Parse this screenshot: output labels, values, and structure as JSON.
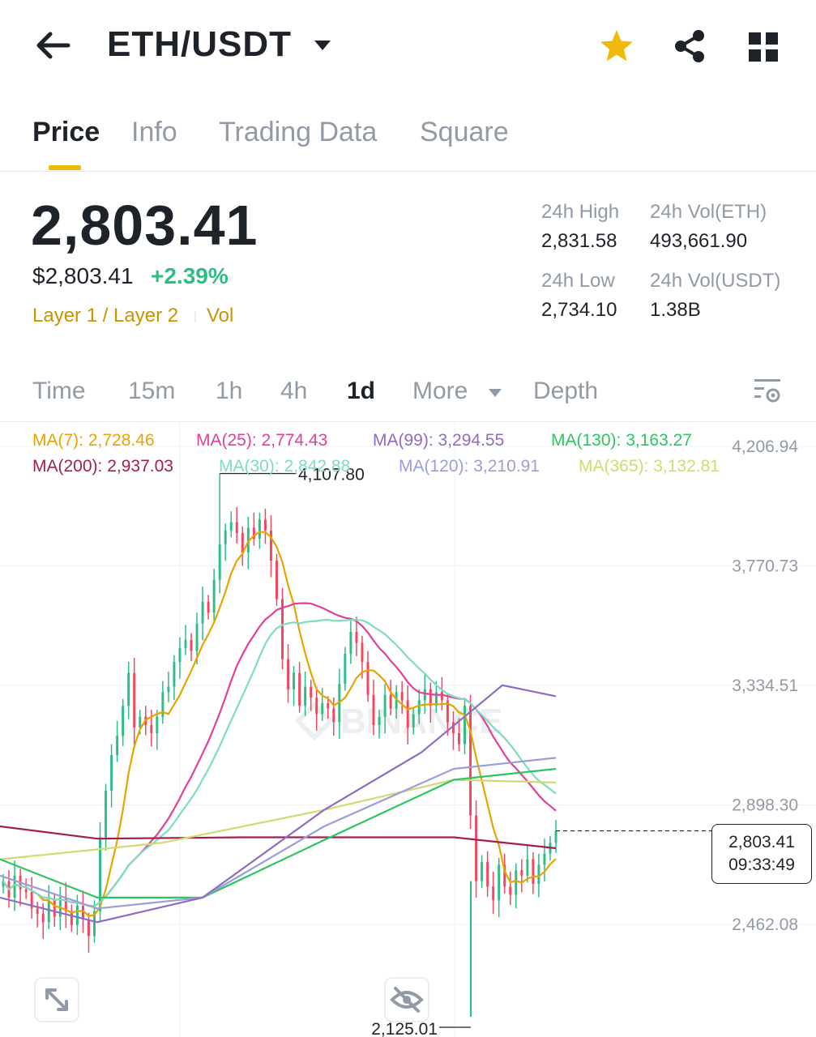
{
  "header": {
    "pair": "ETH/USDT",
    "icons": {
      "back": "arrow-left-icon",
      "caret": "caret-down-icon",
      "favorite": "star-icon",
      "share": "share-icon",
      "grid": "grid-icon"
    },
    "favorite_color": "#F0B90B"
  },
  "tabs": [
    {
      "label": "Price",
      "active": true
    },
    {
      "label": "Info",
      "active": false
    },
    {
      "label": "Trading Data",
      "active": false
    },
    {
      "label": "Square",
      "active": false
    }
  ],
  "price": {
    "last": "2,803.41",
    "usd": "$2,803.41",
    "change": "+2.39%",
    "change_color": "#2EBD85",
    "tag_category": "Layer 1 / Layer 2",
    "tag_vol": "Vol"
  },
  "stats": {
    "high_label": "24h High",
    "high_value": "2,831.58",
    "vol_eth_label": "24h Vol(ETH)",
    "vol_eth_value": "493,661.90",
    "low_label": "24h Low",
    "low_value": "2,734.10",
    "vol_usdt_label": "24h Vol(USDT)",
    "vol_usdt_value": "1.38B"
  },
  "intervals": [
    {
      "label": "Time",
      "active": false
    },
    {
      "label": "15m",
      "active": false
    },
    {
      "label": "1h",
      "active": false
    },
    {
      "label": "4h",
      "active": false
    },
    {
      "label": "1d",
      "active": true
    },
    {
      "label": "More",
      "active": false
    },
    {
      "label": "Depth",
      "active": false
    }
  ],
  "ma_legend": [
    {
      "label": "MA(7): 2,728.46",
      "color": "#E7A400"
    },
    {
      "label": "MA(25): 2,774.43",
      "color": "#E0409A"
    },
    {
      "label": "MA(99): 3,294.55",
      "color": "#8E6CC0"
    },
    {
      "label": "MA(130): 3,163.27",
      "color": "#2DC560"
    },
    {
      "label": "MA(200): 2,937.03",
      "color": "#A1204F"
    },
    {
      "label": "MA(30): 2,842.88",
      "color": "#7FDCC2"
    },
    {
      "label": "MA(120): 3,210.91",
      "color": "#9AA0D6"
    },
    {
      "label": "MA(365): 3,132.81",
      "color": "#D0DC72"
    }
  ],
  "chart_data": {
    "type": "candlestick",
    "interval": "1d",
    "y_axis_ticks": [
      "4,206.94",
      "3,770.73",
      "3,334.51",
      "2,898.30",
      "2,462.08"
    ],
    "y_axis_values": [
      4206.94,
      3770.73,
      3334.51,
      2898.3,
      2462.08
    ],
    "high_marker": {
      "label": "4,107.80",
      "value": 4107.8
    },
    "low_marker": {
      "label": "2,125.01",
      "value": 2125.01
    },
    "last_price": {
      "value": "2,803.41",
      "countdown": "09:33:49"
    },
    "up_color": "#2EBD85",
    "down_color": "#F6465D",
    "watermark": "BINANCE",
    "closes": [
      2620,
      2560,
      2640,
      2590,
      2580,
      2520,
      2500,
      2470,
      2550,
      2490,
      2560,
      2510,
      2460,
      2530,
      2480,
      2420,
      2510,
      2780,
      2950,
      3080,
      3150,
      3260,
      3380,
      3180,
      3220,
      3190,
      3160,
      3220,
      3310,
      3330,
      3420,
      3470,
      3500,
      3460,
      3560,
      3640,
      3600,
      3720,
      3850,
      3900,
      3930,
      3890,
      3820,
      3910,
      3870,
      3940,
      3900,
      3790,
      3650,
      3430,
      3320,
      3380,
      3260,
      3330,
      3290,
      3230,
      3270,
      3250,
      3200,
      3340,
      3450,
      3530,
      3490,
      3420,
      3300,
      3190,
      3220,
      3300,
      3250,
      3310,
      3280,
      3180,
      3230,
      3280,
      3320,
      3260,
      3310,
      3280,
      3200,
      3160,
      3120,
      3260,
      2860,
      2620,
      2690,
      2600,
      2550,
      2680,
      2600,
      2570,
      2660,
      2640,
      2700,
      2610,
      2680,
      2720,
      2760,
      2803
    ]
  },
  "controls": {
    "fullscreen_icon": "expand-icon",
    "hide_indicators_icon": "eye-off-icon",
    "settings_icon": "chart-settings-icon"
  }
}
